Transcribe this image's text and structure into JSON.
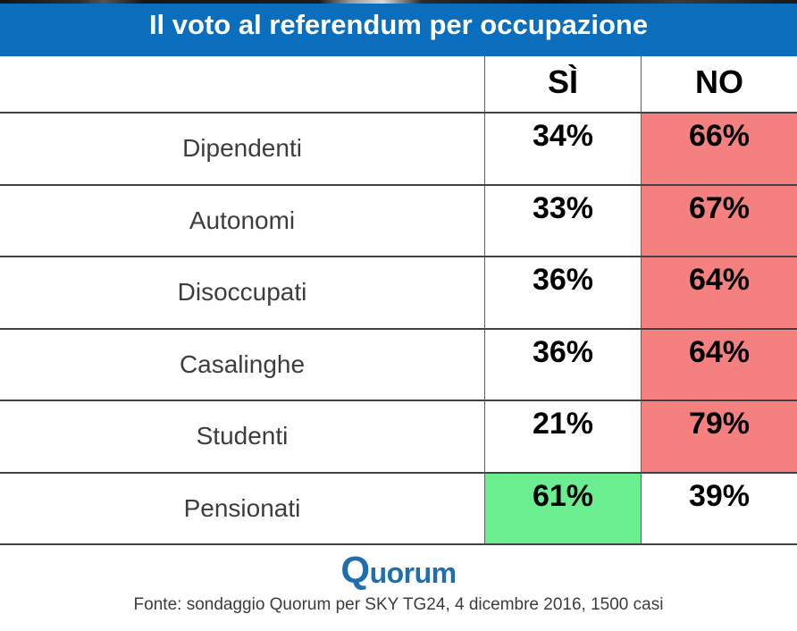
{
  "title_bar": {
    "title": "Il voto al referendum per occupazione"
  },
  "table": {
    "col_si": "SÌ",
    "col_no": "NO",
    "rows": [
      {
        "label": "Dipendenti",
        "si": "34%",
        "no": "66%",
        "si_bg": "#ffffff",
        "no_bg": "#f48080"
      },
      {
        "label": "Autonomi",
        "si": "33%",
        "no": "67%",
        "si_bg": "#ffffff",
        "no_bg": "#f48080"
      },
      {
        "label": "Disoccupati",
        "si": "36%",
        "no": "64%",
        "si_bg": "#ffffff",
        "no_bg": "#f48080"
      },
      {
        "label": "Casalinghe",
        "si": "36%",
        "no": "64%",
        "si_bg": "#ffffff",
        "no_bg": "#f48080"
      },
      {
        "label": "Studenti",
        "si": "21%",
        "no": "79%",
        "si_bg": "#ffffff",
        "no_bg": "#f48080"
      },
      {
        "label": "Pensionati",
        "si": "61%",
        "no": "39%",
        "si_bg": "#6bee8f",
        "no_bg": "#ffffff"
      }
    ]
  },
  "footer": {
    "logo_q": "Q",
    "logo_rest": "uorum",
    "source": "Fonte: sondaggio Quorum per SKY TG24, 4 dicembre 2016, 1500 casi"
  },
  "colors": {
    "header_blue": "#0a6ebd",
    "no_highlight_red": "#f48080",
    "si_highlight_green": "#6bee8f",
    "logo_blue": "#1f6fad",
    "grid_line": "#414141"
  },
  "chart_data": {
    "type": "table",
    "title": "Il voto al referendum per occupazione",
    "columns": [
      "SÌ",
      "NO"
    ],
    "categories": [
      "Dipendenti",
      "Autonomi",
      "Disoccupati",
      "Casalinghe",
      "Studenti",
      "Pensionati"
    ],
    "series": [
      {
        "name": "SÌ",
        "values": [
          34,
          33,
          36,
          36,
          21,
          61
        ]
      },
      {
        "name": "NO",
        "values": [
          66,
          67,
          64,
          64,
          79,
          39
        ]
      }
    ],
    "highlight_rule": "majority cell shaded: NO majority = red #f48080, SÌ majority = green #6bee8f",
    "source": "Fonte: sondaggio Quorum per SKY TG24, 4 dicembre 2016, 1500 casi"
  }
}
